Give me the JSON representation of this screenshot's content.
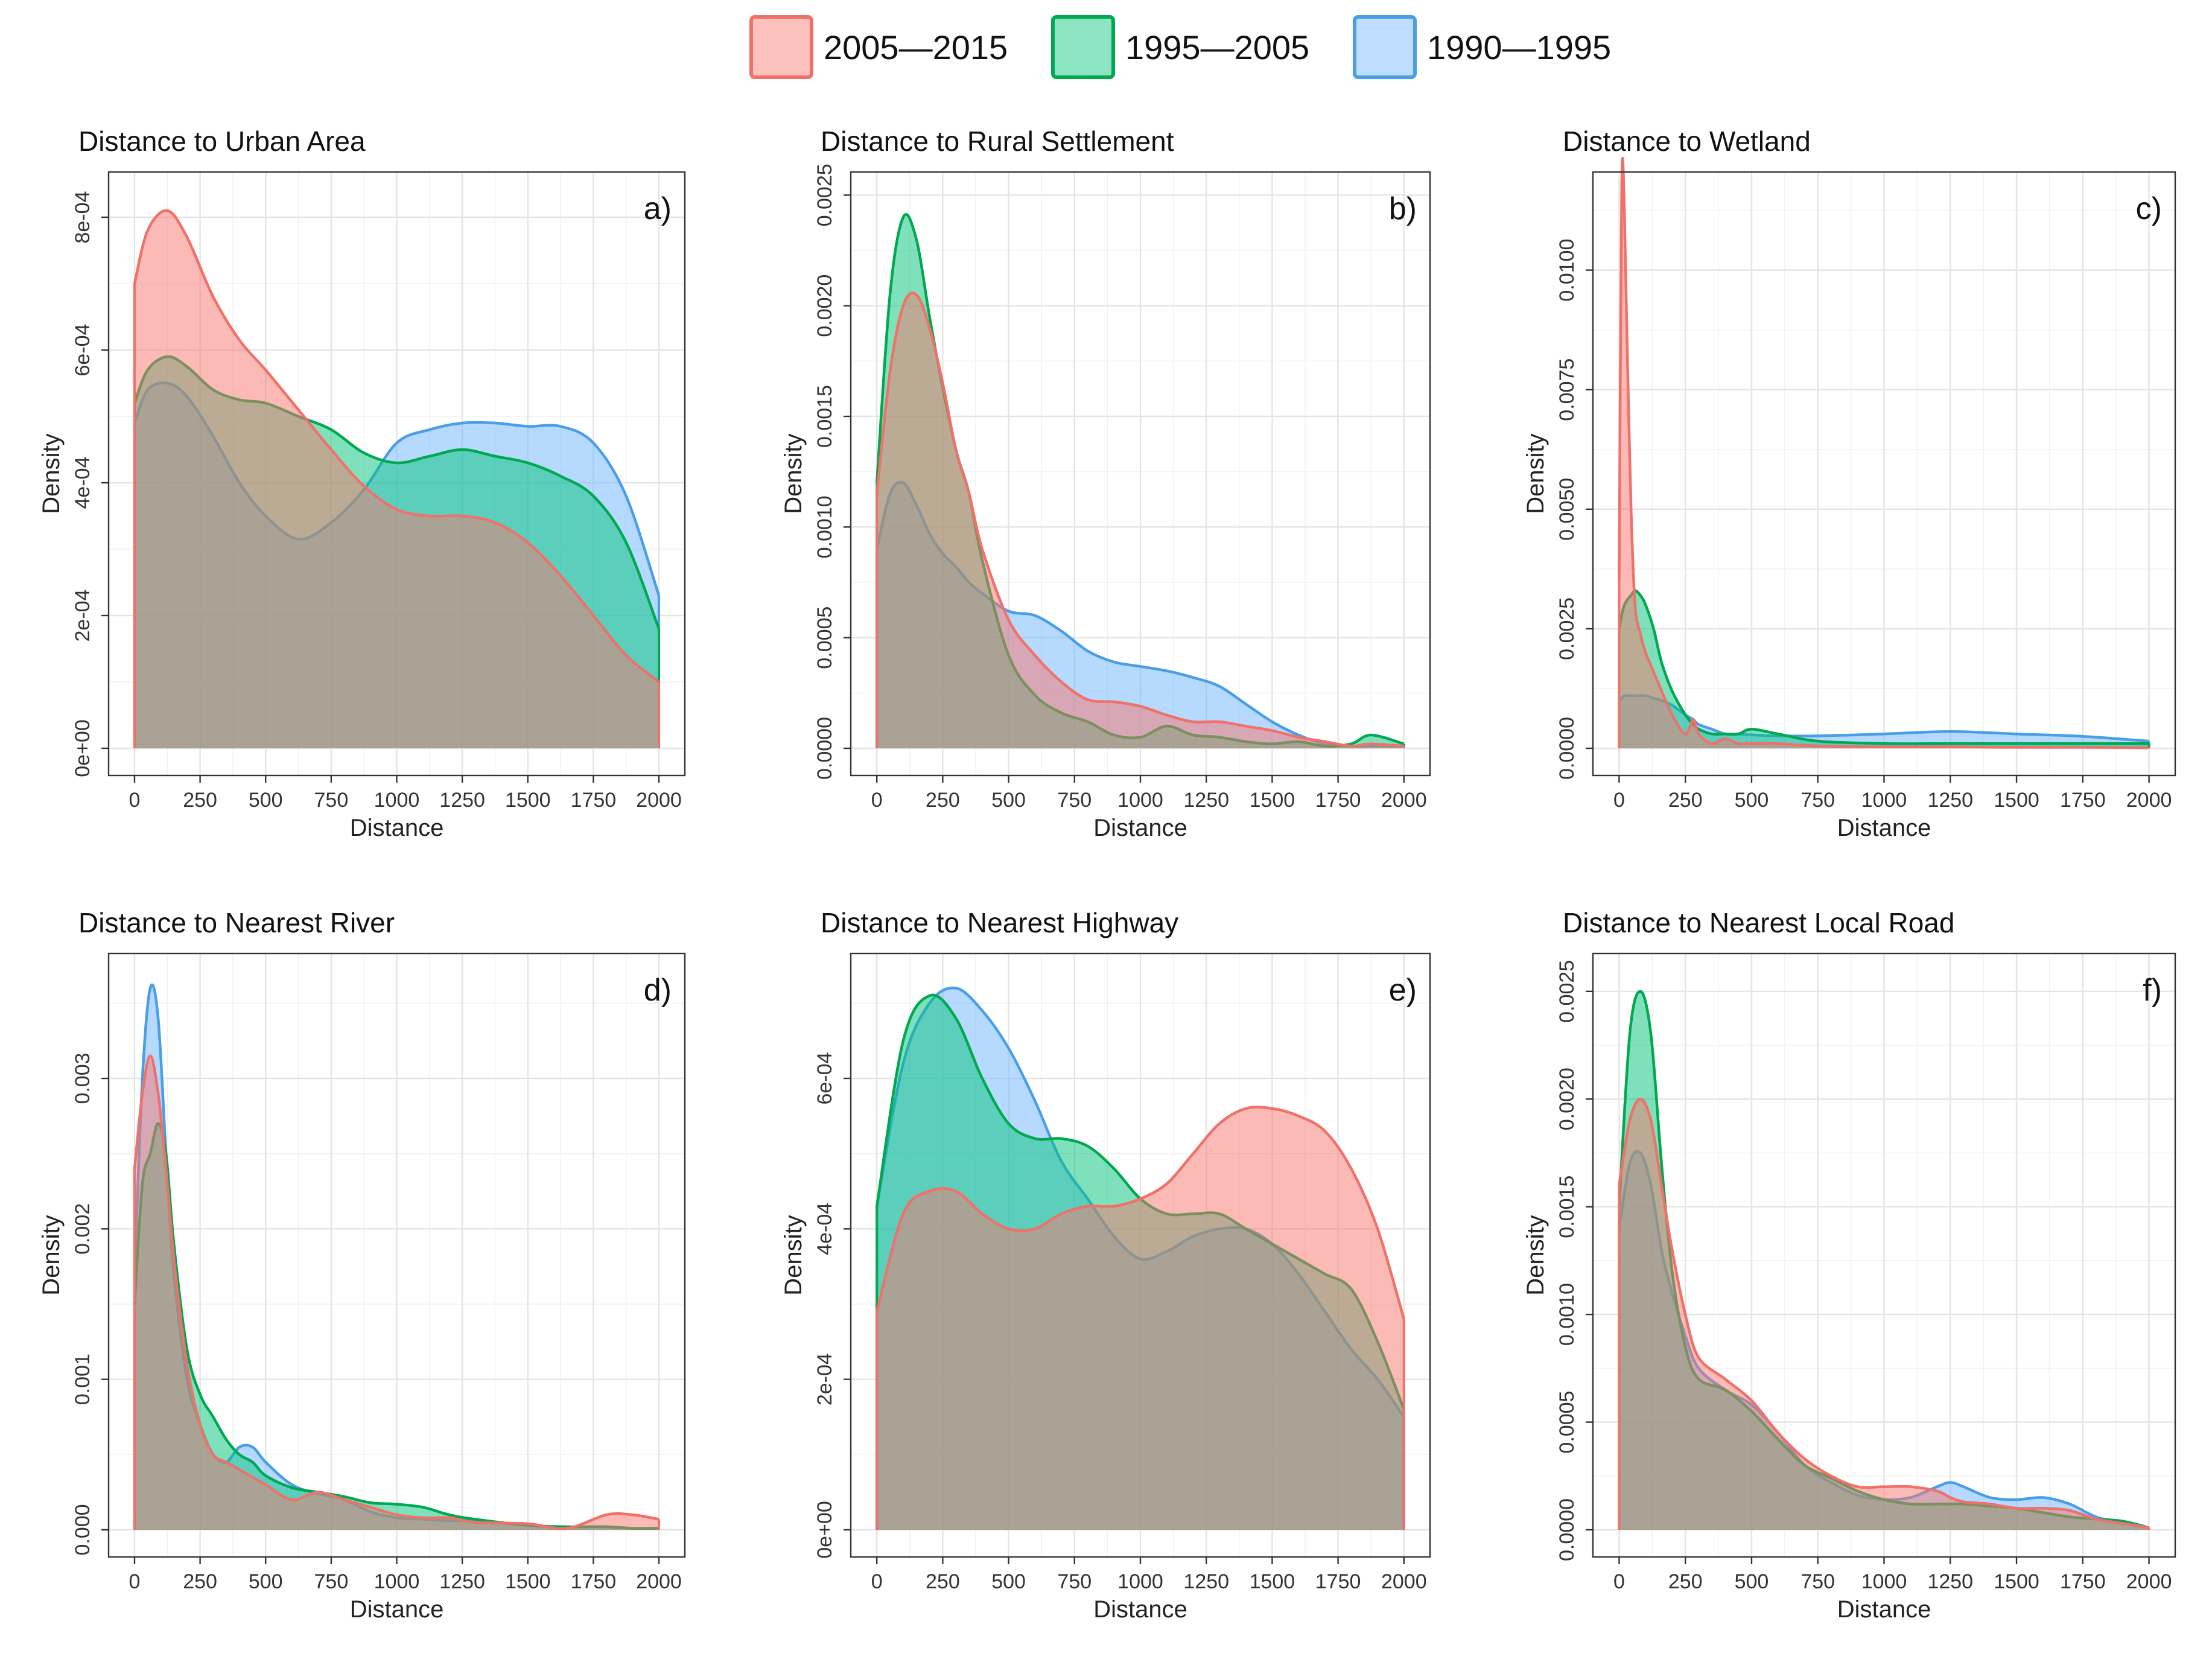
{
  "colors": {
    "2005_2015": {
      "fill": "#f8766d",
      "stroke": "#f0706a"
    },
    "1995_2005": {
      "fill": "#00c47a",
      "stroke": "#00a84f"
    },
    "1990_1995": {
      "fill": "#6eb4ff",
      "stroke": "#4a9ee6"
    }
  },
  "legend": {
    "position": "top-center",
    "entries": [
      {
        "key": "2005_2015",
        "label": "2005—2015"
      },
      {
        "key": "1995_2005",
        "label": "1995—2005"
      },
      {
        "key": "1990_1995",
        "label": "1990—1995"
      }
    ]
  },
  "chart_data": [
    {
      "type": "area",
      "tag": "a)",
      "title": "Distance to Urban Area",
      "xlabel": "Distance",
      "ylabel": "Density",
      "xlim": [
        0,
        2000
      ],
      "ylim": [
        0,
        0.00085
      ],
      "xticks": [
        0,
        250,
        500,
        750,
        1000,
        1250,
        1500,
        1750,
        2000
      ],
      "xtick_labels": [
        "0",
        "250",
        "500",
        "750",
        "1000",
        "1250",
        "1500",
        "1750",
        "2000"
      ],
      "yticks": [
        0,
        0.0002,
        0.0004,
        0.0006,
        0.0008
      ],
      "ytick_labels": [
        "0e+00",
        "2e-04",
        "4e-04",
        "6e-04",
        "8e-04"
      ],
      "grid": true,
      "x": [
        0,
        50,
        125,
        200,
        300,
        400,
        500,
        625,
        750,
        875,
        1000,
        1125,
        1250,
        1375,
        1500,
        1625,
        1750,
        1875,
        2000
      ],
      "series": [
        {
          "name": "2005—2015",
          "key": "2005_2015",
          "values": [
            0.0007,
            0.00078,
            0.00081,
            0.00077,
            0.00068,
            0.000615,
            0.00057,
            0.00051,
            0.00045,
            0.000395,
            0.00036,
            0.00035,
            0.00035,
            0.00034,
            0.00031,
            0.00026,
            0.0002,
            0.00014,
            0.0001
          ]
        },
        {
          "name": "1995—2005",
          "key": "1995_2005",
          "values": [
            0.00052,
            0.00057,
            0.00059,
            0.000575,
            0.00054,
            0.000525,
            0.00052,
            0.0005,
            0.00048,
            0.000445,
            0.00043,
            0.00044,
            0.00045,
            0.00044,
            0.00043,
            0.00041,
            0.00038,
            0.00031,
            0.00018
          ]
        },
        {
          "name": "1990—1995",
          "key": "1990_1995",
          "values": [
            0.00049,
            0.00054,
            0.00055,
            0.00053,
            0.00047,
            0.0004,
            0.00035,
            0.000315,
            0.00034,
            0.00039,
            0.00046,
            0.00048,
            0.00049,
            0.00049,
            0.000485,
            0.000485,
            0.00046,
            0.00038,
            0.00023
          ]
        }
      ]
    },
    {
      "type": "area",
      "tag": "b)",
      "title": "Distance to Rural Settlement",
      "xlabel": "Distance",
      "ylabel": "Density",
      "xlim": [
        0,
        2000
      ],
      "ylim": [
        0,
        0.00255
      ],
      "xticks": [
        0,
        250,
        500,
        750,
        1000,
        1250,
        1500,
        1750,
        2000
      ],
      "xtick_labels": [
        "0",
        "250",
        "500",
        "750",
        "1000",
        "1250",
        "1500",
        "1750",
        "2000"
      ],
      "yticks": [
        0,
        0.0005,
        0.001,
        0.0015,
        0.002,
        0.0025
      ],
      "ytick_labels": [
        "0.0000",
        "0.0005",
        "0.0010",
        "0.0015",
        "0.0020",
        "0.0025"
      ],
      "grid": true,
      "x": [
        0,
        50,
        100,
        150,
        200,
        250,
        300,
        350,
        400,
        500,
        600,
        700,
        800,
        900,
        1000,
        1100,
        1200,
        1300,
        1400,
        1500,
        1600,
        1700,
        1800,
        1875,
        2000
      ],
      "series": [
        {
          "name": "2005—2015",
          "key": "2005_2015",
          "values": [
            0.00115,
            0.0017,
            0.002,
            0.00205,
            0.0019,
            0.00165,
            0.00135,
            0.00115,
            0.0009,
            0.00058,
            0.00042,
            0.0003,
            0.00022,
            0.00021,
            0.00019,
            0.00015,
            0.00012,
            0.00012,
            0.0001,
            8e-05,
            5e-05,
            3e-05,
            1e-05,
            2e-05,
            1e-05
          ]
        },
        {
          "name": "1995—2005",
          "key": "1995_2005",
          "values": [
            0.0012,
            0.00205,
            0.0024,
            0.0023,
            0.00195,
            0.00163,
            0.00135,
            0.00115,
            0.00085,
            0.00042,
            0.00024,
            0.00016,
            0.00012,
            6e-05,
            5e-05,
            0.0001,
            6e-05,
            5e-05,
            3e-05,
            2e-05,
            3e-05,
            1e-05,
            2e-05,
            6e-05,
            2e-05
          ]
        },
        {
          "name": "1990—1995",
          "key": "1990_1995",
          "values": [
            0.0009,
            0.00115,
            0.0012,
            0.0011,
            0.00097,
            0.00088,
            0.00082,
            0.00075,
            0.0007,
            0.00062,
            0.0006,
            0.00053,
            0.00044,
            0.00039,
            0.00037,
            0.00035,
            0.00032,
            0.00028,
            0.0002,
            0.00012,
            6e-05,
            2e-05,
            1e-05,
            1e-05,
            1e-05
          ]
        }
      ]
    },
    {
      "type": "area",
      "tag": "c)",
      "title": "Distance to Wetland",
      "xlabel": "Distance",
      "ylabel": "Density",
      "xlim": [
        0,
        2000
      ],
      "ylim": [
        0,
        0.0118
      ],
      "xticks": [
        0,
        250,
        500,
        750,
        1000,
        1250,
        1500,
        1750,
        2000
      ],
      "xtick_labels": [
        "0",
        "250",
        "500",
        "750",
        "1000",
        "1250",
        "1500",
        "1750",
        "2000"
      ],
      "yticks": [
        0,
        0.0025,
        0.005,
        0.0075,
        0.01
      ],
      "ytick_labels": [
        "0.0000",
        "0.0025",
        "0.0050",
        "0.0075",
        "0.0100"
      ],
      "grid": true,
      "x": [
        0,
        10,
        20,
        30,
        45,
        60,
        80,
        100,
        130,
        160,
        200,
        250,
        280,
        300,
        350,
        400,
        450,
        500,
        600,
        750,
        1000,
        1250,
        1500,
        1750,
        2000
      ],
      "series": [
        {
          "name": "2005—2015",
          "key": "2005_2015",
          "values": [
            0.0035,
            0.0118,
            0.0112,
            0.0085,
            0.005,
            0.003,
            0.0024,
            0.002,
            0.0016,
            0.0012,
            0.0007,
            0.0003,
            0.0006,
            0.0003,
            0.0001,
            0.0002,
            0.0001,
            0.0001,
            0.0001,
            5e-05,
            3e-05,
            3e-05,
            2e-05,
            2e-05,
            1e-05
          ]
        },
        {
          "name": "1995—2005",
          "key": "1995_2005",
          "values": [
            0.0025,
            0.0028,
            0.003,
            0.0031,
            0.0032,
            0.0033,
            0.0032,
            0.003,
            0.0025,
            0.0018,
            0.0012,
            0.0007,
            0.0005,
            0.0004,
            0.0003,
            0.0003,
            0.0003,
            0.0004,
            0.0003,
            0.00015,
            0.0001,
            0.0001,
            0.0001,
            0.0001,
            0.0001
          ]
        },
        {
          "name": "1990—1995",
          "key": "1990_1995",
          "values": [
            0.001,
            0.00105,
            0.0011,
            0.0011,
            0.0011,
            0.0011,
            0.0011,
            0.0011,
            0.00105,
            0.001,
            0.0009,
            0.0007,
            0.0006,
            0.0005,
            0.0004,
            0.0003,
            0.0003,
            0.00028,
            0.00026,
            0.00026,
            0.0003,
            0.00035,
            0.0003,
            0.00025,
            0.00015
          ]
        }
      ]
    },
    {
      "type": "area",
      "tag": "d)",
      "title": "Distance to Nearest River",
      "xlabel": "Distance",
      "ylabel": "Density",
      "xlim": [
        0,
        2000
      ],
      "ylim": [
        0,
        0.00375
      ],
      "xticks": [
        0,
        250,
        500,
        750,
        1000,
        1250,
        1500,
        1750,
        2000
      ],
      "xtick_labels": [
        "0",
        "250",
        "500",
        "750",
        "1000",
        "1250",
        "1500",
        "1750",
        "2000"
      ],
      "yticks": [
        0,
        0.001,
        0.002,
        0.003
      ],
      "ytick_labels": [
        "0.000",
        "0.001",
        "0.002",
        "0.003"
      ],
      "grid": true,
      "x": [
        0,
        30,
        60,
        90,
        120,
        150,
        200,
        250,
        300,
        350,
        400,
        450,
        500,
        600,
        700,
        800,
        900,
        1000,
        1100,
        1200,
        1300,
        1500,
        1650,
        1800,
        1900,
        2000
      ],
      "series": [
        {
          "name": "2005—2015",
          "key": "2005_2015",
          "values": [
            0.0024,
            0.0029,
            0.00315,
            0.0029,
            0.0024,
            0.0018,
            0.0011,
            0.0007,
            0.0005,
            0.00045,
            0.0004,
            0.00035,
            0.0003,
            0.0002,
            0.00025,
            0.0002,
            0.00015,
            0.0001,
            8e-05,
            8e-05,
            5e-05,
            4e-05,
            1e-05,
            0.0001,
            0.0001,
            7e-05
          ]
        },
        {
          "name": "1995—2005",
          "key": "1995_2005",
          "values": [
            0.0015,
            0.0023,
            0.0025,
            0.0027,
            0.0025,
            0.0019,
            0.0012,
            0.0009,
            0.00075,
            0.0006,
            0.0005,
            0.00045,
            0.00036,
            0.00028,
            0.00025,
            0.00022,
            0.00018,
            0.00017,
            0.00015,
            0.0001,
            7e-05,
            3e-05,
            2e-05,
            2e-05,
            1e-05,
            1e-05
          ]
        },
        {
          "name": "1990—1995",
          "key": "1990_1995",
          "values": [
            0.0017,
            0.003,
            0.0036,
            0.0034,
            0.0025,
            0.0017,
            0.001,
            0.0007,
            0.0005,
            0.00045,
            0.00055,
            0.00055,
            0.00045,
            0.0003,
            0.00024,
            0.0002,
            0.00012,
            8e-05,
            7e-05,
            6e-05,
            6e-05,
            3e-05,
            2e-05,
            2e-05,
            1e-05,
            1e-05
          ]
        }
      ]
    },
    {
      "type": "area",
      "tag": "e)",
      "title": "Distance to Nearest Highway",
      "xlabel": "Distance",
      "ylabel": "Density",
      "xlim": [
        0,
        2000
      ],
      "ylim": [
        0,
        0.00075
      ],
      "xticks": [
        0,
        250,
        500,
        750,
        1000,
        1250,
        1500,
        1750,
        2000
      ],
      "xtick_labels": [
        "0",
        "250",
        "500",
        "750",
        "1000",
        "1250",
        "1500",
        "1750",
        "2000"
      ],
      "yticks": [
        0,
        0.0002,
        0.0004,
        0.0006
      ],
      "ytick_labels": [
        "0e+00",
        "2e-04",
        "4e-04",
        "6e-04"
      ],
      "grid": true,
      "x": [
        0,
        100,
        200,
        300,
        400,
        500,
        600,
        700,
        800,
        900,
        1000,
        1100,
        1200,
        1300,
        1400,
        1500,
        1600,
        1700,
        1800,
        1900,
        2000
      ],
      "series": [
        {
          "name": "2005—2015",
          "key": "2005_2015",
          "values": [
            0.00029,
            0.00042,
            0.00045,
            0.00045,
            0.00042,
            0.0004,
            0.0004,
            0.00042,
            0.00043,
            0.00043,
            0.00044,
            0.00046,
            0.0005,
            0.00054,
            0.00056,
            0.00056,
            0.00055,
            0.00053,
            0.00048,
            0.0004,
            0.00028
          ]
        },
        {
          "name": "1995—2005",
          "key": "1995_2005",
          "values": [
            0.00043,
            0.00065,
            0.00071,
            0.00068,
            0.0006,
            0.00054,
            0.00052,
            0.00052,
            0.00051,
            0.00048,
            0.00044,
            0.00042,
            0.00042,
            0.00042,
            0.0004,
            0.00038,
            0.00036,
            0.00034,
            0.00032,
            0.00025,
            0.00016
          ]
        },
        {
          "name": "1990—1995",
          "key": "1990_1995",
          "values": [
            0.00043,
            0.00062,
            0.0007,
            0.00072,
            0.00069,
            0.00064,
            0.00057,
            0.00049,
            0.00044,
            0.00039,
            0.00036,
            0.00037,
            0.00039,
            0.0004,
            0.0004,
            0.00038,
            0.00034,
            0.00029,
            0.00024,
            0.0002,
            0.00015
          ]
        }
      ]
    },
    {
      "type": "area",
      "tag": "f)",
      "title": "Distance to Nearest Local Road",
      "xlabel": "Distance",
      "ylabel": "Density",
      "xlim": [
        0,
        2000
      ],
      "ylim": [
        0,
        0.00262
      ],
      "xticks": [
        0,
        250,
        500,
        750,
        1000,
        1250,
        1500,
        1750,
        2000
      ],
      "xtick_labels": [
        "0",
        "250",
        "500",
        "750",
        "1000",
        "1250",
        "1500",
        "1750",
        "2000"
      ],
      "yticks": [
        0,
        0.0005,
        0.001,
        0.0015,
        0.002,
        0.0025
      ],
      "ytick_labels": [
        "0.0000",
        "0.0005",
        "0.0010",
        "0.0015",
        "0.0020",
        "0.0025"
      ],
      "grid": true,
      "x": [
        0,
        40,
        80,
        120,
        160,
        200,
        250,
        300,
        400,
        500,
        600,
        700,
        800,
        900,
        1000,
        1100,
        1200,
        1250,
        1300,
        1400,
        1500,
        1600,
        1700,
        1800,
        1900,
        2000
      ],
      "series": [
        {
          "name": "2005—2015",
          "key": "2005_2015",
          "values": [
            0.0016,
            0.0019,
            0.002,
            0.0019,
            0.0016,
            0.0013,
            0.001,
            0.0008,
            0.0007,
            0.0006,
            0.00045,
            0.00033,
            0.00025,
            0.0002,
            0.0002,
            0.0002,
            0.00018,
            0.00015,
            0.00013,
            0.00012,
            0.0001,
            0.0001,
            9e-05,
            5e-05,
            3e-05,
            1e-05
          ]
        },
        {
          "name": "1995—2005",
          "key": "1995_2005",
          "values": [
            0.0015,
            0.0023,
            0.0025,
            0.0023,
            0.0017,
            0.0012,
            0.00085,
            0.0007,
            0.00065,
            0.00055,
            0.00042,
            0.0003,
            0.00024,
            0.00018,
            0.00014,
            0.00012,
            0.00012,
            0.00012,
            0.00012,
            0.00011,
            0.0001,
            8e-05,
            6e-05,
            5e-05,
            4e-05,
            1e-05
          ]
        },
        {
          "name": "1990—1995",
          "key": "1990_1995",
          "values": [
            0.0014,
            0.0017,
            0.00175,
            0.0016,
            0.0013,
            0.0011,
            0.0009,
            0.00075,
            0.00065,
            0.00058,
            0.00045,
            0.0003,
            0.00022,
            0.00016,
            0.00014,
            0.00015,
            0.0002,
            0.00022,
            0.0002,
            0.00015,
            0.00014,
            0.00015,
            0.00012,
            6e-05,
            3e-05,
            1e-05
          ]
        }
      ]
    }
  ]
}
